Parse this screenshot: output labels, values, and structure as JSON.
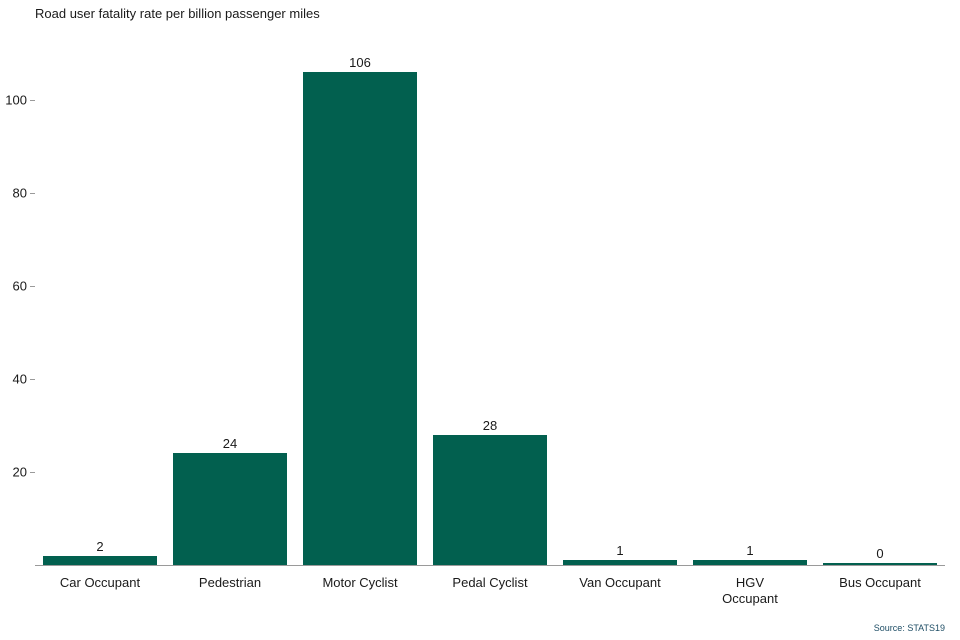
{
  "title": "Road user fatality rate per billion passenger miles",
  "source": "Source: STATS19",
  "colors": {
    "bar": "#02604f",
    "axis": "#9a9a9a",
    "text": "#1a1a1a",
    "source_text": "#1f4e66"
  },
  "chart_data": {
    "type": "bar",
    "title": "Road user fatality rate per billion passenger miles",
    "categories": [
      "Car Occupant",
      "Pedestrian",
      "Motor Cyclist",
      "Pedal Cyclist",
      "Van Occupant",
      "HGV Occupant",
      "Bus Occupant"
    ],
    "values": [
      2,
      24,
      106,
      28,
      1,
      1,
      0
    ],
    "value_labels": [
      "2",
      "24",
      "106",
      "28",
      "1",
      "1",
      "0"
    ],
    "xlabel": "",
    "ylabel": "",
    "ylim": [
      0,
      112
    ],
    "yticks": [
      20,
      40,
      60,
      80,
      100
    ],
    "grid": false,
    "legend": false,
    "annotation": "Source: STATS19"
  }
}
